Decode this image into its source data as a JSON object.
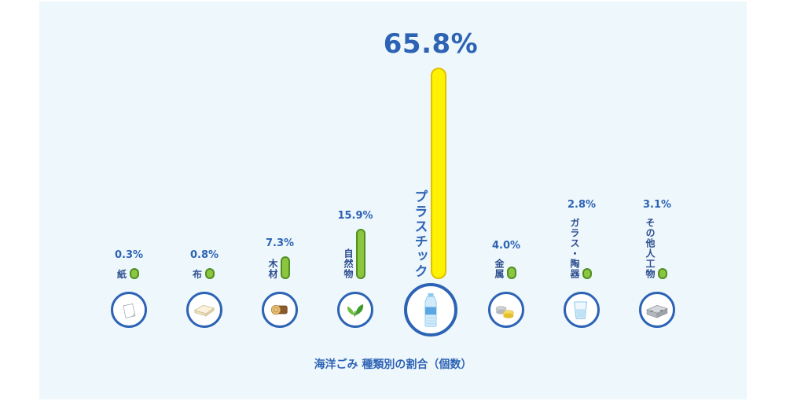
{
  "chart_data": {
    "type": "bar",
    "caption": "海洋ごみ 種類別の割合（個数）",
    "items": [
      {
        "label": "紙",
        "pct_label": "0.3%",
        "value": 0.3,
        "icon": "paper-icon"
      },
      {
        "label": "布",
        "pct_label": "0.8%",
        "value": 0.8,
        "icon": "cloth-icon"
      },
      {
        "label": "木材",
        "pct_label": "7.3%",
        "value": 7.3,
        "icon": "log-icon"
      },
      {
        "label": "自然物",
        "pct_label": "15.9%",
        "value": 15.9,
        "icon": "leaf-icon"
      },
      {
        "label": "プラスチック",
        "pct_label": "65.8%",
        "value": 65.8,
        "icon": "plastic-bottle-icon",
        "highlight": true
      },
      {
        "label": "金属",
        "pct_label": "4.0%",
        "value": 4.0,
        "icon": "can-icon"
      },
      {
        "label": "ガラス・陶器",
        "pct_label": "2.8%",
        "value": 2.8,
        "icon": "glass-icon"
      },
      {
        "label": "その他人工物",
        "pct_label": "3.1%",
        "value": 3.1,
        "icon": "block-icon"
      }
    ],
    "colors": {
      "bar": "#8cc63f",
      "bar_border": "#4f8f24",
      "highlight_bar": "#fff200",
      "text": "#2d63b5",
      "circle_border": "#2d63b5",
      "background": "#eef7fb"
    }
  }
}
